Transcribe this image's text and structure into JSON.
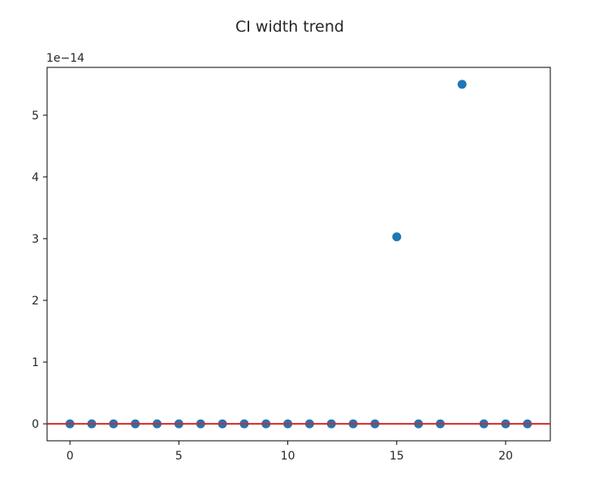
{
  "chart_data": {
    "type": "scatter",
    "title": "CI width trend",
    "xlabel": "",
    "ylabel": "",
    "y_offset_label": "1e−14",
    "xlim": [
      -1.05,
      22.05
    ],
    "ylim": [
      -0.275,
      5.775
    ],
    "x_ticks": [
      0,
      5,
      10,
      15,
      20
    ],
    "x_tick_labels": [
      "0",
      "5",
      "10",
      "15",
      "20"
    ],
    "y_ticks": [
      0,
      1,
      2,
      3,
      4,
      5
    ],
    "y_tick_labels": [
      "0",
      "1",
      "2",
      "3",
      "4",
      "5"
    ],
    "grid": false,
    "series": [
      {
        "marker_color": "#1f77b4",
        "x": [
          0,
          1,
          2,
          3,
          4,
          5,
          6,
          7,
          8,
          9,
          10,
          11,
          12,
          13,
          14,
          15,
          16,
          17,
          18,
          19,
          20,
          21
        ],
        "y": [
          0,
          0,
          0,
          0,
          0,
          0,
          0,
          0,
          0,
          0,
          0,
          0,
          0,
          0,
          0,
          3.03,
          0,
          0,
          5.5,
          0,
          0,
          0
        ]
      }
    ],
    "reference_line": {
      "y": 0,
      "color": "#d62728"
    }
  }
}
